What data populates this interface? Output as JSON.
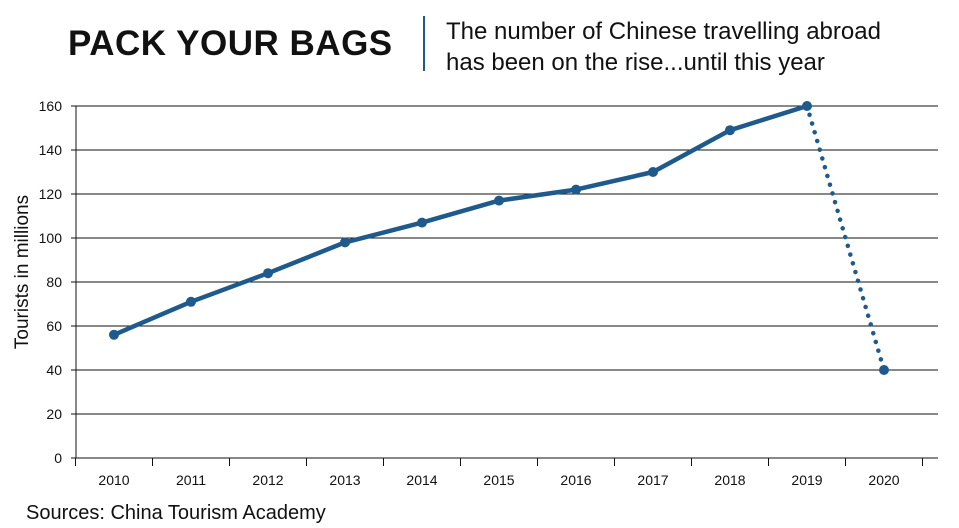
{
  "header": {
    "title": "PACK YOUR BAGS",
    "subtitle_line1": "The number of Chinese travelling abroad",
    "subtitle_line2": "has been on the rise...until this year"
  },
  "footer": {
    "source": "Sources: China Tourism Academy"
  },
  "colors": {
    "line": "#1e5a8c",
    "axis": "#111111",
    "grid": "#111111"
  },
  "chart_data": {
    "type": "line",
    "title": "PACK YOUR BAGS",
    "subtitle": "The number of Chinese travelling abroad has been on the rise...until this year",
    "xlabel": "",
    "ylabel": "Tourists in millions",
    "ylim": [
      0,
      160
    ],
    "yticks": [
      0,
      20,
      40,
      60,
      80,
      100,
      120,
      140,
      160
    ],
    "grid": true,
    "categories": [
      "2010",
      "2011",
      "2012",
      "2013",
      "2014",
      "2015",
      "2016",
      "2017",
      "2018",
      "2019",
      "2020"
    ],
    "series": [
      {
        "values": [
          56,
          71,
          84,
          98,
          107,
          117,
          122,
          130,
          149,
          160,
          40
        ],
        "style": "solid line 2010-2019, dotted line 2019-2020"
      }
    ]
  }
}
